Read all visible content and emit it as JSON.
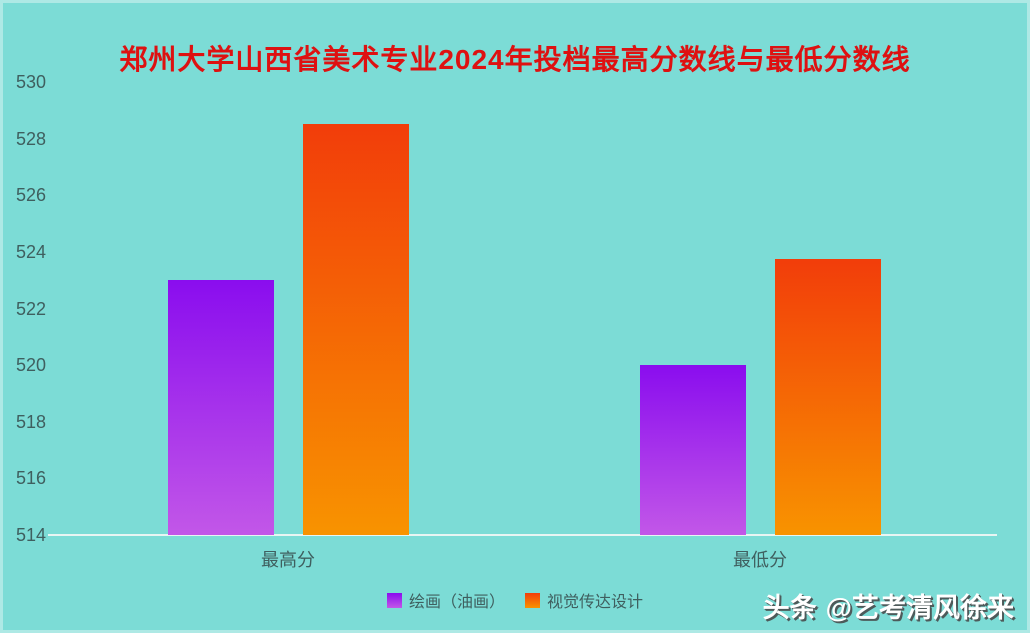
{
  "title": {
    "text": "郑州大学山西省美术专业2024年投档最高分数线与最低分数线"
  },
  "chart_data": {
    "type": "bar",
    "categories": [
      "最高分",
      "最低分"
    ],
    "series": [
      {
        "name": "绘画（油画）",
        "values": [
          523,
          520
        ],
        "gradient": [
          "#8a0dee",
          "#c257e8"
        ]
      },
      {
        "name": "视觉传达设计",
        "values": [
          528.5,
          523.75
        ],
        "gradient": [
          "#f23d0a",
          "#f89300"
        ]
      }
    ],
    "title": "郑州大学山西省美术专业2024年投档最高分数线与最低分数线",
    "xlabel": "",
    "ylabel": "",
    "ylim": [
      514,
      530
    ],
    "yticks": [
      514,
      516,
      518,
      520,
      522,
      524,
      526,
      528,
      530
    ],
    "grid": false,
    "legend_position": "bottom"
  },
  "watermark": {
    "brand": "头条",
    "handle": "@艺考清风徐来"
  },
  "colors": {
    "background": "#7cdcd6",
    "title": "#de1111",
    "axis_text": "#3f5f5f",
    "baseline": "#e8f5f3",
    "purple_top": "#8a0dee",
    "purple_bottom": "#c257e8",
    "orange_top": "#f23d0a",
    "orange_bottom": "#f89300",
    "watermark_text": "#ffffff",
    "watermark_shadow": "#4d5a5a"
  }
}
